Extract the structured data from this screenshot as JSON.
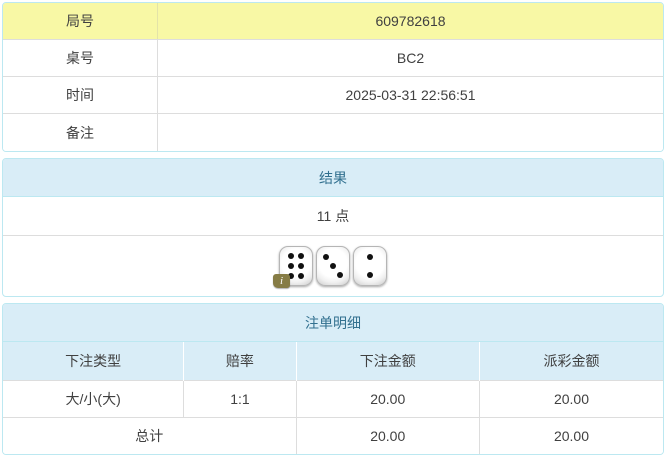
{
  "info": {
    "rows": [
      {
        "label": "局号",
        "value": "609782618"
      },
      {
        "label": "桌号",
        "value": "BC2"
      },
      {
        "label": "时间",
        "value": "2025-03-31 22:56:51"
      },
      {
        "label": "备注",
        "value": ""
      }
    ]
  },
  "result": {
    "header": "结果",
    "points": "11 点",
    "dice": [
      6,
      3,
      2
    ],
    "info_badge": "i"
  },
  "bet": {
    "header": "注单明细",
    "columns": [
      "下注类型",
      "赔率",
      "下注金额",
      "派彩金额"
    ],
    "rows": [
      {
        "type": "大/小(大)",
        "odds": "1:1",
        "amount": "20.00",
        "payout": "20.00"
      }
    ],
    "total": {
      "label": "总计",
      "amount": "20.00",
      "payout": "20.00"
    }
  },
  "colors": {
    "panel_border": "#bce8f1",
    "header_bg": "#d9edf7",
    "header_text": "#31708f",
    "highlight_row": "#f8f8a5",
    "odds_red": "#f20000",
    "inner_border": "#dddddd",
    "text": "#404040"
  }
}
